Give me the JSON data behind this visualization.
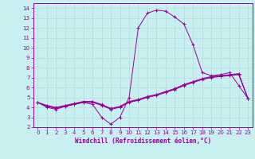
{
  "xlabel": "Windchill (Refroidissement éolien,°C)",
  "bg_color": "#c8f0f0",
  "line_color": "#990099",
  "grid_color": "#b8e0e0",
  "xlim": [
    -0.5,
    23.5
  ],
  "ylim": [
    2,
    14.5
  ],
  "xticks": [
    0,
    1,
    2,
    3,
    4,
    5,
    6,
    7,
    8,
    9,
    10,
    11,
    12,
    13,
    14,
    15,
    16,
    17,
    18,
    19,
    20,
    21,
    22,
    23
  ],
  "yticks": [
    2,
    3,
    4,
    5,
    6,
    7,
    8,
    9,
    10,
    11,
    12,
    13,
    14
  ],
  "curve_main_x": [
    0,
    1,
    2,
    3,
    4,
    5,
    6,
    7,
    8,
    9,
    10,
    11,
    12,
    13,
    14,
    15,
    16,
    17,
    18,
    19,
    20,
    21,
    22,
    23
  ],
  "curve_main_y": [
    4.5,
    4.0,
    3.8,
    4.1,
    4.3,
    4.5,
    4.3,
    3.0,
    2.3,
    3.0,
    5.0,
    12.0,
    13.5,
    13.8,
    13.7,
    13.1,
    12.4,
    10.3,
    7.5,
    7.2,
    7.3,
    7.5,
    6.2,
    4.9
  ],
  "curve_lin1_x": [
    0,
    1,
    2,
    3,
    4,
    5,
    6,
    7,
    8,
    9,
    10,
    11,
    12,
    13,
    14,
    15,
    16,
    17,
    18,
    19,
    20,
    21,
    22,
    23
  ],
  "curve_lin1_y": [
    4.5,
    4.1,
    3.9,
    4.1,
    4.3,
    4.5,
    4.5,
    4.2,
    3.8,
    4.0,
    4.5,
    4.7,
    5.0,
    5.2,
    5.5,
    5.8,
    6.2,
    6.5,
    6.8,
    7.0,
    7.1,
    7.2,
    7.3,
    4.9
  ],
  "curve_lin2_x": [
    0,
    1,
    2,
    3,
    4,
    5,
    6,
    7,
    8,
    9,
    10,
    11,
    12,
    13,
    14,
    15,
    16,
    17,
    18,
    19,
    20,
    21,
    22,
    23
  ],
  "curve_lin2_y": [
    4.5,
    4.15,
    3.95,
    4.15,
    4.35,
    4.55,
    4.55,
    4.25,
    3.85,
    4.05,
    4.55,
    4.75,
    5.05,
    5.25,
    5.55,
    5.85,
    6.25,
    6.55,
    6.85,
    7.05,
    7.15,
    7.25,
    7.35,
    4.9
  ],
  "curve_lin3_x": [
    0,
    1,
    2,
    3,
    4,
    5,
    6,
    7,
    8,
    9,
    10,
    11,
    12,
    13,
    14,
    15,
    16,
    17,
    18,
    19,
    20,
    21,
    22,
    23
  ],
  "curve_lin3_y": [
    4.5,
    4.2,
    4.0,
    4.2,
    4.4,
    4.6,
    4.6,
    4.3,
    3.9,
    4.1,
    4.6,
    4.8,
    5.1,
    5.3,
    5.6,
    5.9,
    6.3,
    6.6,
    6.9,
    7.1,
    7.2,
    7.3,
    7.4,
    4.9
  ]
}
